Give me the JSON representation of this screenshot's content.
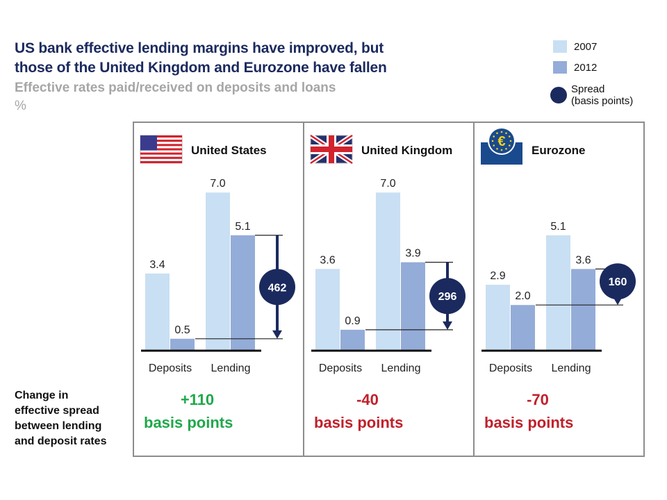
{
  "header": {
    "title_line1": "US bank effective lending margins have improved, but",
    "title_line2": "those of the United Kingdom and Eurozone have fallen",
    "subtitle": "Effective rates paid/received on deposits and loans",
    "unit": "%"
  },
  "legend": {
    "items": [
      {
        "label": "2007",
        "color": "#c9dff3"
      },
      {
        "label": "2012",
        "color": "#94acd8"
      }
    ],
    "spread_label_line1": "Spread",
    "spread_label_line2": "(basis points)",
    "spread_color": "#1b2a5e"
  },
  "side_label": {
    "lines": [
      "Change in",
      "effective spread",
      "between lending",
      "and deposit rates"
    ]
  },
  "colors": {
    "bar_2007": "#c9dff3",
    "bar_2012": "#94acd8",
    "spread": "#1b2a5e",
    "positive": "#1fa84a",
    "negative": "#c0202a",
    "panel_border": "#8c8c8c"
  },
  "chart_data": {
    "type": "bar",
    "title": "US bank effective lending margins have improved, but those of the United Kingdom and Eurozone have fallen",
    "subtitle": "Effective rates paid/received on deposits and loans",
    "ylabel": "%",
    "ylim": [
      0,
      7.5
    ],
    "grid": false,
    "legend_position": "top-right",
    "categories": [
      "Deposits",
      "Lending"
    ],
    "series_names": [
      "2007",
      "2012"
    ],
    "panels": [
      {
        "name": "United States",
        "flag": "us-flag-icon",
        "series": [
          {
            "name": "2007",
            "values": [
              3.4,
              7.0
            ],
            "labels": [
              "3.4",
              "7.0"
            ]
          },
          {
            "name": "2012",
            "values": [
              0.5,
              5.1
            ],
            "labels": [
              "0.5",
              "5.1"
            ]
          }
        ],
        "spread_bp": "462",
        "spread_style": "arrow",
        "change_value": "+110",
        "change_unit": "basis points",
        "change_sign": "positive"
      },
      {
        "name": "United Kingdom",
        "flag": "uk-flag-icon",
        "series": [
          {
            "name": "2007",
            "values": [
              3.6,
              7.0
            ],
            "labels": [
              "3.6",
              "7.0"
            ]
          },
          {
            "name": "2012",
            "values": [
              0.9,
              3.9
            ],
            "labels": [
              "0.9",
              "3.9"
            ]
          }
        ],
        "spread_bp": "296",
        "spread_style": "arrow",
        "change_value": "-40",
        "change_unit": "basis points",
        "change_sign": "negative"
      },
      {
        "name": "Eurozone",
        "flag": "euro-emblem-icon",
        "series": [
          {
            "name": "2007",
            "values": [
              2.9,
              5.1
            ],
            "labels": [
              "2.9",
              "5.1"
            ]
          },
          {
            "name": "2012",
            "values": [
              2.0,
              3.6
            ],
            "labels": [
              "2.0",
              "3.6"
            ]
          }
        ],
        "spread_bp": "160",
        "spread_style": "callout",
        "change_value": "-70",
        "change_unit": "basis points",
        "change_sign": "negative"
      }
    ]
  }
}
